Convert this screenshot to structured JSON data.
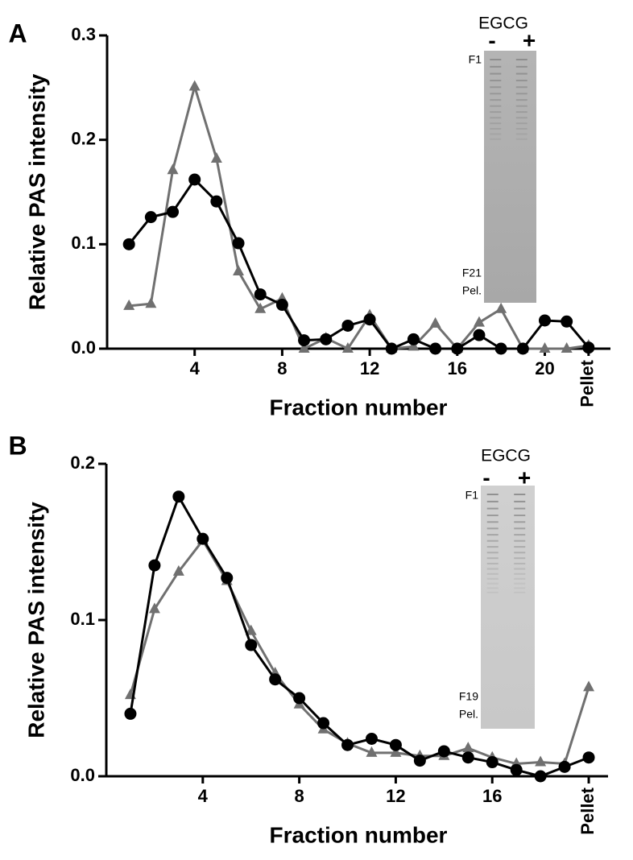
{
  "chart_data": [
    {
      "type": "line",
      "panel_label": "A",
      "y_label": "Relative PAS intensity",
      "x_label": "Fraction number",
      "x": [
        1,
        2,
        3,
        4,
        5,
        6,
        7,
        8,
        9,
        10,
        11,
        12,
        13,
        14,
        15,
        16,
        17,
        18,
        19,
        20,
        21,
        22
      ],
      "series": [
        {
          "color": "#000000",
          "marker": "circle",
          "values": [
            0.1,
            0.126,
            0.131,
            0.162,
            0.141,
            0.101,
            0.052,
            0.042,
            0.008,
            0.009,
            0.022,
            0.028,
            0.0,
            0.009,
            0.0,
            0.0,
            0.013,
            0.0,
            0.0,
            0.027,
            0.026,
            0.001
          ]
        },
        {
          "color": "#707070",
          "marker": "triangle",
          "values": [
            0.041,
            0.043,
            0.171,
            0.251,
            0.182,
            0.074,
            0.038,
            0.048,
            0.0,
            0.01,
            0.0,
            0.032,
            0.0,
            0.002,
            0.024,
            0.0,
            0.025,
            0.038,
            0.0,
            0.0,
            0.0,
            0.003
          ]
        }
      ],
      "xlim": [
        0,
        23
      ],
      "xticks": [
        4,
        8,
        12,
        16,
        20,
        {
          "value": 22,
          "label": "Pellet"
        }
      ],
      "ylim": [
        0,
        0.3
      ],
      "yticks": [
        {
          "value": 0,
          "label": "0.0"
        },
        0.1,
        0.2,
        0.3
      ],
      "inset": {
        "title": "EGCG",
        "lanes": [
          "-",
          "+"
        ],
        "labels": [
          "F1",
          "F21",
          "Pel."
        ]
      }
    },
    {
      "type": "line",
      "panel_label": "B",
      "y_label": "Relative PAS intensity",
      "x_label": "Fraction number",
      "x": [
        1,
        2,
        3,
        4,
        5,
        6,
        7,
        8,
        9,
        10,
        11,
        12,
        13,
        14,
        15,
        16,
        17,
        18,
        19,
        20
      ],
      "series": [
        {
          "color": "#000000",
          "marker": "circle",
          "values": [
            0.04,
            0.135,
            0.179,
            0.152,
            0.127,
            0.084,
            0.062,
            0.05,
            0.034,
            0.02,
            0.024,
            0.02,
            0.01,
            0.016,
            0.012,
            0.009,
            0.004,
            0.0,
            0.006,
            0.012
          ]
        },
        {
          "color": "#707070",
          "marker": "triangle",
          "values": [
            0.052,
            0.107,
            0.131,
            0.151,
            0.125,
            0.093,
            0.066,
            0.046,
            0.03,
            0.021,
            0.015,
            0.015,
            0.013,
            0.013,
            0.018,
            0.012,
            0.008,
            0.009,
            0.008,
            0.057
          ]
        }
      ],
      "xlim": [
        0,
        20.8
      ],
      "xticks": [
        4,
        8,
        12,
        16,
        {
          "value": 20,
          "label": "Pellet"
        }
      ],
      "ylim": [
        0,
        0.2
      ],
      "yticks": [
        {
          "value": 0,
          "label": "0.0"
        },
        0.1,
        0.2
      ],
      "inset": {
        "title": "EGCG",
        "lanes": [
          "-",
          "+"
        ],
        "labels": [
          "F1",
          "F19",
          "Pel."
        ]
      }
    }
  ]
}
